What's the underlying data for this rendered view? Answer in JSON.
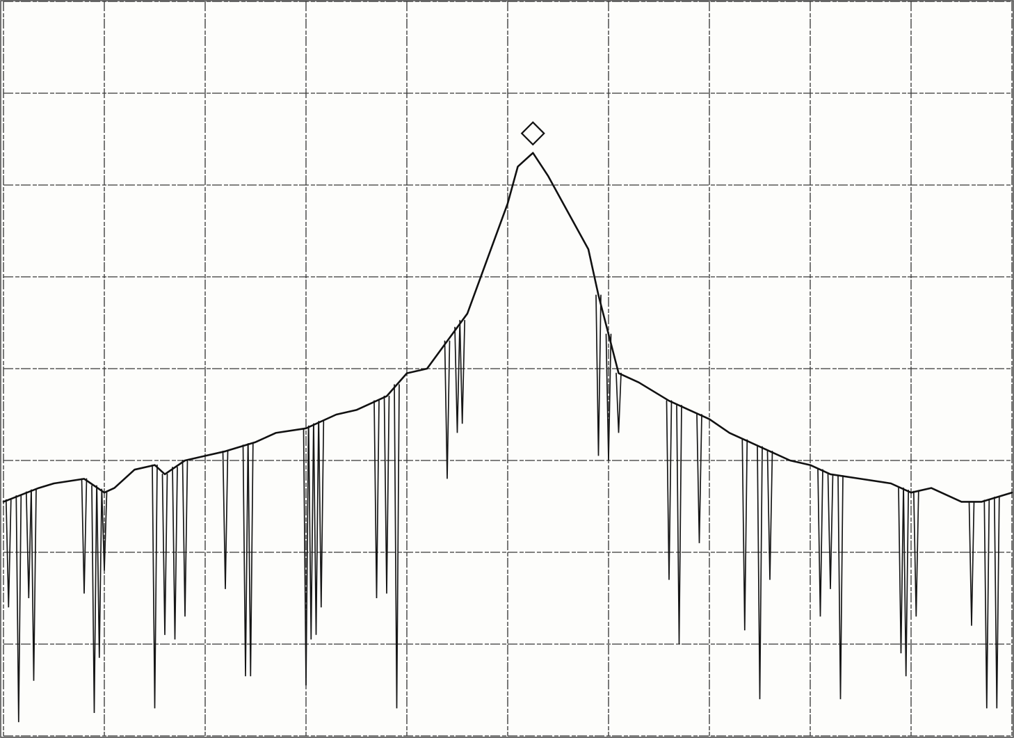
{
  "chart_data": {
    "type": "line",
    "title": "",
    "xlabel": "",
    "ylabel": "",
    "grid": true,
    "divisions": {
      "x": 10,
      "y": 8
    },
    "xlim": [
      0,
      10
    ],
    "ylim": [
      0,
      8
    ],
    "series": [
      {
        "x": [
          0,
          0.35,
          0.5,
          0.8,
          1.0,
          1.1,
          1.3,
          1.5,
          1.6,
          1.8,
          2.0,
          2.2,
          2.5,
          2.7,
          3.0,
          3.3,
          3.5,
          3.8,
          4.0,
          4.2,
          4.4,
          4.6,
          4.8,
          5.0,
          5.1,
          5.25,
          5.4,
          5.6,
          5.8,
          5.9,
          6.1,
          6.3,
          6.6,
          6.8,
          7.0,
          7.2,
          7.4,
          7.6,
          7.8,
          8.0,
          8.2,
          8.5,
          8.8,
          9.0,
          9.2,
          9.5,
          9.7,
          10.0
        ],
        "y": [
          2.55,
          2.7,
          2.75,
          2.8,
          2.65,
          2.7,
          2.9,
          2.95,
          2.85,
          3.0,
          3.05,
          3.1,
          3.2,
          3.3,
          3.35,
          3.5,
          3.55,
          3.7,
          3.95,
          4.0,
          4.3,
          4.6,
          5.2,
          5.8,
          6.2,
          6.35,
          6.1,
          5.7,
          5.3,
          4.8,
          3.95,
          3.85,
          3.65,
          3.55,
          3.45,
          3.3,
          3.2,
          3.1,
          3.0,
          2.95,
          2.85,
          2.8,
          2.75,
          2.65,
          2.7,
          2.55,
          2.55,
          2.65
        ]
      }
    ],
    "dips": {
      "x": [
        0.05,
        0.15,
        0.25,
        0.3,
        0.8,
        0.9,
        0.95,
        1.0,
        1.5,
        1.6,
        1.7,
        1.8,
        2.2,
        2.4,
        2.45,
        3.0,
        3.05,
        3.1,
        3.15,
        3.7,
        3.8,
        3.9,
        4.4,
        4.5,
        4.55,
        5.9,
        6.0,
        6.1,
        6.6,
        6.7,
        6.9,
        7.35,
        7.5,
        7.6,
        8.1,
        8.2,
        8.3,
        8.9,
        8.95,
        9.05,
        9.6,
        9.75,
        9.85
      ],
      "y": [
        1.4,
        0.15,
        1.5,
        0.6,
        1.55,
        0.25,
        0.85,
        1.8,
        0.3,
        1.1,
        1.05,
        1.3,
        1.6,
        0.65,
        0.65,
        0.55,
        1.05,
        1.1,
        1.4,
        1.5,
        1.55,
        0.3,
        2.8,
        3.3,
        3.4,
        3.05,
        3.0,
        3.3,
        1.7,
        1.0,
        2.1,
        1.15,
        0.4,
        1.7,
        1.3,
        1.6,
        0.4,
        0.9,
        0.65,
        1.3,
        1.2,
        0.3,
        0.3
      ]
    }
  }
}
